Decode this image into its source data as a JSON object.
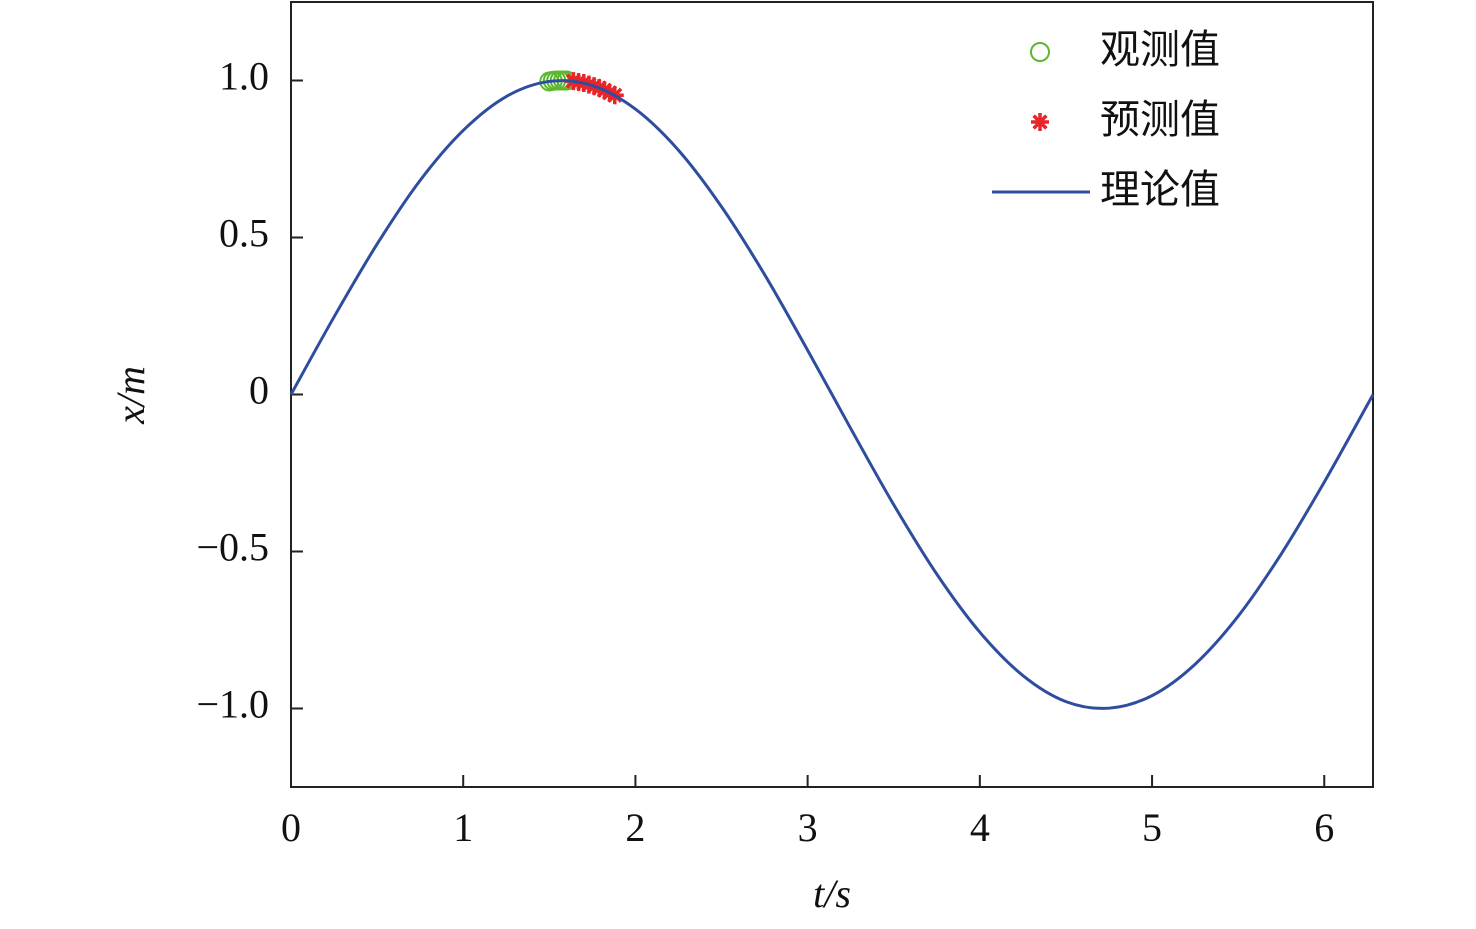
{
  "chart_data": {
    "type": "line",
    "x_label": "t/s",
    "y_label": "x/m",
    "xlim": [
      0,
      6.283
    ],
    "ylim": [
      -1.25,
      1.25
    ],
    "xticks": [
      0,
      1,
      2,
      3,
      4,
      5,
      6
    ],
    "yticks": [
      {
        "value": 1,
        "label": "1.0"
      },
      {
        "value": 0.5,
        "label": "0.5"
      },
      0,
      {
        "value": -0.5,
        "label": "−0.5"
      },
      {
        "value": -1,
        "label": "−1.0"
      }
    ],
    "legend": "upper right",
    "series": [
      {
        "name": "观测值",
        "type": "scatter",
        "marker": "circle",
        "color": "#5cb82e",
        "x": [
          1.5,
          1.52,
          1.54,
          1.56,
          1.58,
          1.6
        ],
        "values": [
          0.997,
          0.999,
          1.0,
          1.0,
          1.0,
          1.0
        ]
      },
      {
        "name": "预测值",
        "type": "scatter",
        "marker": "asterisk",
        "color": "#e8262a",
        "x": [
          1.64,
          1.67,
          1.7,
          1.73,
          1.76,
          1.79,
          1.82,
          1.85,
          1.88
        ],
        "values": [
          0.998,
          0.995,
          0.992,
          0.987,
          0.982,
          0.976,
          0.969,
          0.961,
          0.953
        ]
      },
      {
        "name": "理论值",
        "type": "line",
        "color": "#2e4d9e",
        "x": [
          0,
          0.25,
          0.5,
          0.75,
          1.0,
          1.25,
          1.5,
          1.75,
          2.0,
          2.25,
          2.5,
          2.75,
          3.0,
          3.25,
          3.5,
          3.75,
          4.0,
          4.25,
          4.5,
          4.75,
          5.0,
          5.25,
          5.5,
          5.75,
          6.0,
          6.25,
          6.283
        ],
        "values": [
          0,
          0.247,
          0.479,
          0.682,
          0.841,
          0.949,
          0.997,
          0.984,
          0.909,
          0.778,
          0.598,
          0.382,
          0.141,
          -0.108,
          -0.351,
          -0.572,
          -0.757,
          -0.895,
          -0.978,
          -0.999,
          -0.959,
          -0.859,
          -0.706,
          -0.508,
          -0.279,
          -0.033,
          0
        ]
      }
    ]
  }
}
